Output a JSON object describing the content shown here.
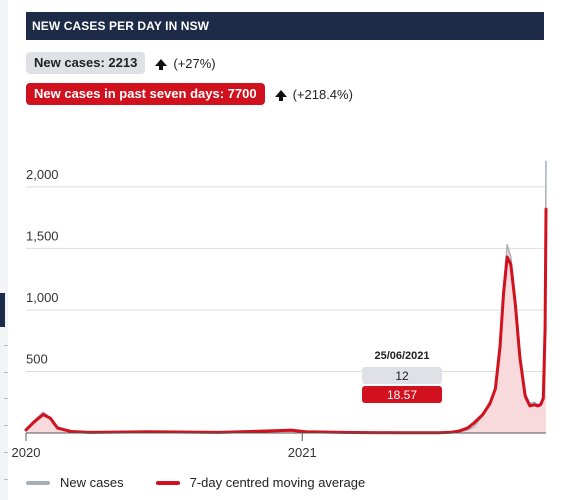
{
  "header": {
    "title": "NEW CASES PER DAY IN NSW"
  },
  "stats": {
    "new_cases_label": "New cases: 2213",
    "new_cases_change": "(+27%)",
    "seven_day_label": "New cases in past seven days: 7700",
    "seven_day_change": "(+218.4%)"
  },
  "colors": {
    "header_bg": "#1e2b48",
    "red": "#d1111d",
    "grey_series": "#a9aebb",
    "area_fill": "#f8d9dc",
    "grid": "#dddddd"
  },
  "tooltip": {
    "date": "25/06/2021",
    "new_cases": "12",
    "moving_average": "18.57"
  },
  "legend": {
    "new_cases": "New cases",
    "moving_average": "7-day centred moving average"
  },
  "chart_data": {
    "type": "line",
    "title": "NEW CASES PER DAY IN NSW",
    "xlabel": "",
    "ylabel": "",
    "ylim": [
      0,
      2300
    ],
    "yticks": [
      500,
      1000,
      1500,
      2000
    ],
    "ytick_labels": [
      "500",
      "1,000",
      "1,500",
      "2,000"
    ],
    "xlim": [
      "2020-03-01",
      "2021-09-28"
    ],
    "xticks": [
      "2020-03-01",
      "2021-01-01"
    ],
    "xtick_labels": [
      "2020",
      "2021"
    ],
    "grid": true,
    "legend_position": "bottom",
    "x": [
      "2020-03-01",
      "2020-03-10",
      "2020-03-20",
      "2020-03-28",
      "2020-04-05",
      "2020-04-20",
      "2020-05-10",
      "2020-07-15",
      "2020-08-15",
      "2020-10-01",
      "2020-12-20",
      "2021-01-05",
      "2021-02-15",
      "2021-04-15",
      "2021-06-01",
      "2021-06-15",
      "2021-06-25",
      "2021-07-03",
      "2021-07-10",
      "2021-07-20",
      "2021-07-28",
      "2021-08-03",
      "2021-08-08",
      "2021-08-12",
      "2021-08-16",
      "2021-08-20",
      "2021-08-25",
      "2021-08-30",
      "2021-09-05",
      "2021-09-10",
      "2021-09-15",
      "2021-09-19",
      "2021-09-22",
      "2021-09-25",
      "2021-09-27",
      "2021-09-28"
    ],
    "series": [
      {
        "name": "New cases",
        "values": [
          30,
          100,
          170,
          120,
          50,
          15,
          5,
          10,
          8,
          5,
          30,
          10,
          5,
          2,
          2,
          5,
          12,
          25,
          50,
          140,
          260,
          350,
          750,
          1180,
          1530,
          1430,
          1080,
          620,
          320,
          240,
          250,
          230,
          240,
          310,
          900,
          2213
        ]
      },
      {
        "name": "7-day centred moving average",
        "values": [
          25,
          90,
          150,
          120,
          40,
          12,
          5,
          10,
          8,
          5,
          22,
          10,
          5,
          2,
          2,
          6,
          18.57,
          40,
          80,
          150,
          240,
          360,
          700,
          1140,
          1430,
          1370,
          1050,
          620,
          300,
          220,
          230,
          220,
          230,
          280,
          850,
          1820
        ]
      }
    ]
  }
}
